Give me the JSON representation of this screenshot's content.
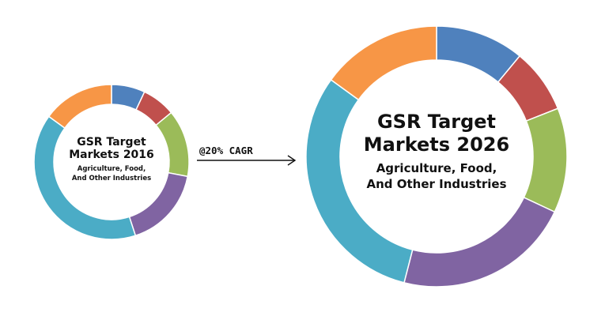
{
  "cagr_label": "@20% CAGR",
  "chart_data": [
    {
      "type": "pie",
      "title_line1": "GSR Target",
      "title_line2": "Markets 2016",
      "subtitle_line1": "Agriculture, Food,",
      "subtitle_line2": "And Other Industries",
      "slices": [
        {
          "value": 7,
          "color": "#4f81bd"
        },
        {
          "value": 7,
          "color": "#c0504d"
        },
        {
          "value": 14,
          "color": "#9bbb59"
        },
        {
          "value": 17,
          "color": "#8064a2"
        },
        {
          "value": 40,
          "color": "#4bacc6"
        },
        {
          "value": 15,
          "color": "#f79646"
        }
      ]
    },
    {
      "type": "pie",
      "title_line1": "GSR Target",
      "title_line2": "Markets 2026",
      "subtitle_line1": "Agriculture, Food,",
      "subtitle_line2": "And Other Industries",
      "slices": [
        {
          "value": 11,
          "color": "#4f81bd"
        },
        {
          "value": 8,
          "color": "#c0504d"
        },
        {
          "value": 13,
          "color": "#9bbb59"
        },
        {
          "value": 22,
          "color": "#8064a2"
        },
        {
          "value": 31,
          "color": "#4bacc6"
        },
        {
          "value": 15,
          "color": "#f79646"
        }
      ]
    }
  ]
}
